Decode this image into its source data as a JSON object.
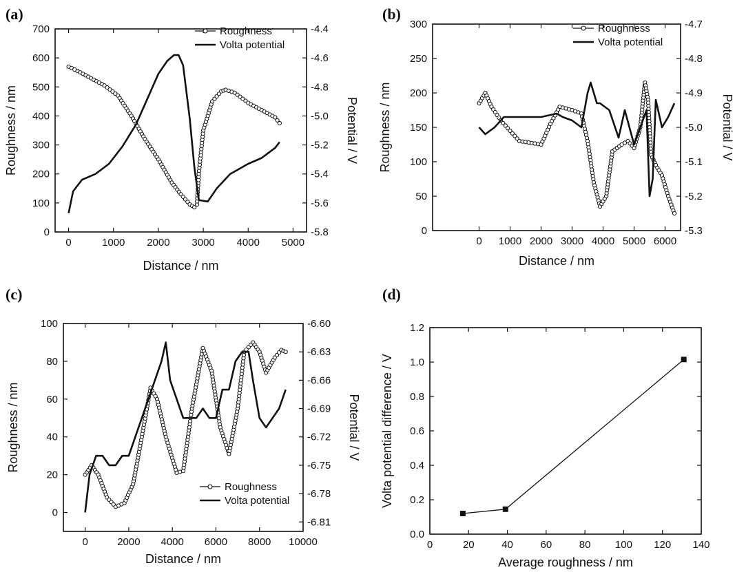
{
  "chart_data": [
    {
      "panel_label": "(a)",
      "type": "line",
      "xlabel": "Distance / nm",
      "ylabel": "Roughness / nm",
      "y2label": "Potential / V",
      "xlim": [
        -300,
        5300
      ],
      "xticks": [
        0,
        1000,
        2000,
        3000,
        4000,
        5000
      ],
      "ylim": [
        0,
        700
      ],
      "yticks": [
        0,
        100,
        200,
        300,
        400,
        500,
        600,
        700
      ],
      "y2lim": [
        -5.8,
        -4.4
      ],
      "y2ticks": [
        -5.8,
        -5.6,
        -5.4,
        -5.2,
        -5.0,
        -4.8,
        -4.6,
        -4.4
      ],
      "y2_tick_labels": [
        "-5.8",
        "-5.6",
        "-5.4",
        "-5.2",
        "-5.0",
        "-4.8",
        "-4.6",
        "-4.4"
      ],
      "legend_position": "top-right",
      "series": [
        {
          "name": "Roughness",
          "axis": "left",
          "style": "line-circle",
          "x": [
            0,
            200,
            500,
            800,
            1100,
            1400,
            1700,
            2000,
            2300,
            2500,
            2700,
            2800,
            2860,
            2900,
            3000,
            3200,
            3400,
            3500,
            3700,
            4000,
            4300,
            4600,
            4700
          ],
          "y": [
            570,
            555,
            530,
            505,
            470,
            400,
            320,
            250,
            170,
            130,
            95,
            85,
            95,
            200,
            350,
            450,
            485,
            490,
            480,
            445,
            420,
            395,
            375
          ]
        },
        {
          "name": "Volta potential",
          "axis": "right",
          "style": "line",
          "x": [
            0,
            100,
            300,
            600,
            900,
            1200,
            1500,
            1800,
            2000,
            2200,
            2350,
            2450,
            2550,
            2700,
            2800,
            2900,
            3100,
            3300,
            3600,
            4000,
            4300,
            4600,
            4700
          ],
          "y": [
            -5.67,
            -5.52,
            -5.44,
            -5.4,
            -5.33,
            -5.21,
            -5.06,
            -4.85,
            -4.71,
            -4.62,
            -4.58,
            -4.58,
            -4.65,
            -5.02,
            -5.35,
            -5.58,
            -5.59,
            -5.5,
            -5.4,
            -5.33,
            -5.29,
            -5.22,
            -5.18
          ]
        }
      ]
    },
    {
      "panel_label": "(b)",
      "type": "line",
      "xlabel": "Distance / nm",
      "ylabel": "Roughness / nm",
      "y2label": "Potential / V",
      "xlim": [
        -1500,
        6500
      ],
      "xticks": [
        0,
        1000,
        2000,
        3000,
        4000,
        5000,
        6000
      ],
      "ylim": [
        0,
        300
      ],
      "yticks": [
        0,
        50,
        100,
        150,
        200,
        250,
        300
      ],
      "y2lim": [
        -5.3,
        -4.7
      ],
      "y2ticks": [
        -5.3,
        -5.2,
        -5.1,
        -5.0,
        -4.9,
        -4.8,
        -4.7
      ],
      "y2_tick_labels": [
        "-5.3",
        "-5.2",
        "-5.1",
        "-5.0",
        "-4.9",
        "-4.8",
        "-4.7"
      ],
      "legend_position": "top-right",
      "series": [
        {
          "name": "Roughness",
          "axis": "left",
          "style": "line-circle",
          "x": [
            0,
            200,
            400,
            700,
            1000,
            1300,
            1600,
            2000,
            2300,
            2600,
            3000,
            3300,
            3500,
            3700,
            3900,
            4100,
            4300,
            4600,
            4800,
            5000,
            5200,
            5350,
            5450,
            5550,
            5700,
            5900,
            6100,
            6300
          ],
          "y": [
            185,
            200,
            180,
            160,
            145,
            130,
            128,
            125,
            155,
            180,
            175,
            170,
            130,
            70,
            35,
            50,
            115,
            125,
            130,
            120,
            150,
            215,
            190,
            110,
            95,
            80,
            50,
            25
          ]
        },
        {
          "name": "Volta potential",
          "axis": "right",
          "style": "line",
          "x": [
            0,
            200,
            500,
            800,
            1200,
            1600,
            2000,
            2500,
            2700,
            3000,
            3300,
            3500,
            3600,
            3700,
            3800,
            3900,
            4200,
            4500,
            4700,
            5000,
            5200,
            5400,
            5500,
            5600,
            5700,
            5900,
            6100,
            6300
          ],
          "y": [
            -5.0,
            -5.02,
            -5.0,
            -4.97,
            -4.97,
            -4.97,
            -4.97,
            -4.96,
            -4.97,
            -4.98,
            -5.0,
            -4.9,
            -4.87,
            -4.9,
            -4.93,
            -4.93,
            -4.95,
            -5.03,
            -4.95,
            -5.05,
            -5.0,
            -4.95,
            -5.2,
            -5.15,
            -4.92,
            -5.0,
            -4.97,
            -4.93
          ]
        }
      ]
    },
    {
      "panel_label": "(c)",
      "type": "line",
      "xlabel": "Distance / nm",
      "ylabel": "Roughness / nm",
      "y2label": "Potential / V",
      "xlim": [
        -1000,
        10000
      ],
      "xticks": [
        0,
        2000,
        4000,
        6000,
        8000,
        10000
      ],
      "ylim": [
        -10,
        100
      ],
      "yticks": [
        0,
        20,
        40,
        60,
        80,
        100
      ],
      "y2lim": [
        -6.82,
        -6.6
      ],
      "y2ticks": [
        -6.81,
        -6.78,
        -6.75,
        -6.72,
        -6.69,
        -6.66,
        -6.63,
        -6.6
      ],
      "y2_tick_labels": [
        "-6.81",
        "-6.78",
        "-6.75",
        "-6.72",
        "-6.69",
        "-6.66",
        "-6.63",
        "-6.60"
      ],
      "legend_position": "bottom-right",
      "series": [
        {
          "name": "Roughness",
          "axis": "left",
          "style": "line-circle",
          "x": [
            0,
            300,
            600,
            1000,
            1400,
            1800,
            2200,
            2600,
            3000,
            3300,
            3700,
            4200,
            4500,
            4900,
            5400,
            5800,
            6200,
            6600,
            7000,
            7300,
            7700,
            8000,
            8300,
            8700,
            9000,
            9200
          ],
          "y": [
            20,
            25,
            20,
            8,
            3,
            5,
            15,
            40,
            66,
            60,
            40,
            21,
            22,
            55,
            87,
            75,
            45,
            31,
            55,
            85,
            90,
            85,
            74,
            82,
            86,
            85
          ]
        },
        {
          "name": "Volta potential",
          "axis": "right",
          "style": "line",
          "x": [
            0,
            200,
            500,
            800,
            1100,
            1400,
            1700,
            2000,
            2300,
            2600,
            2900,
            3200,
            3500,
            3700,
            3900,
            4200,
            4500,
            4800,
            5100,
            5400,
            5700,
            6000,
            6300,
            6600,
            6900,
            7200,
            7500,
            7700,
            8000,
            8300,
            8600,
            8900,
            9200
          ],
          "y": [
            -6.8,
            -6.76,
            -6.74,
            -6.74,
            -6.75,
            -6.75,
            -6.74,
            -6.74,
            -6.72,
            -6.7,
            -6.68,
            -6.66,
            -6.64,
            -6.62,
            -6.66,
            -6.68,
            -6.7,
            -6.7,
            -6.7,
            -6.69,
            -6.7,
            -6.7,
            -6.67,
            -6.67,
            -6.64,
            -6.63,
            -6.63,
            -6.66,
            -6.7,
            -6.71,
            -6.7,
            -6.69,
            -6.67
          ]
        }
      ]
    },
    {
      "panel_label": "(d)",
      "type": "line",
      "xlabel": "Average roughness / nm",
      "ylabel": "Volta potential difference / V",
      "xlim": [
        0,
        140
      ],
      "xticks": [
        0,
        20,
        40,
        60,
        80,
        100,
        120,
        140
      ],
      "ylim": [
        0,
        1.2
      ],
      "yticks": [
        0.0,
        0.2,
        0.4,
        0.6,
        0.8,
        1.0,
        1.2
      ],
      "y_tick_labels": [
        "0.0",
        "0.2",
        "0.4",
        "0.6",
        "0.8",
        "1.0",
        "1.2"
      ],
      "series": [
        {
          "axis": "left",
          "style": "line-square",
          "x": [
            17,
            39,
            131
          ],
          "y": [
            0.12,
            0.145,
            1.015
          ]
        }
      ]
    }
  ]
}
